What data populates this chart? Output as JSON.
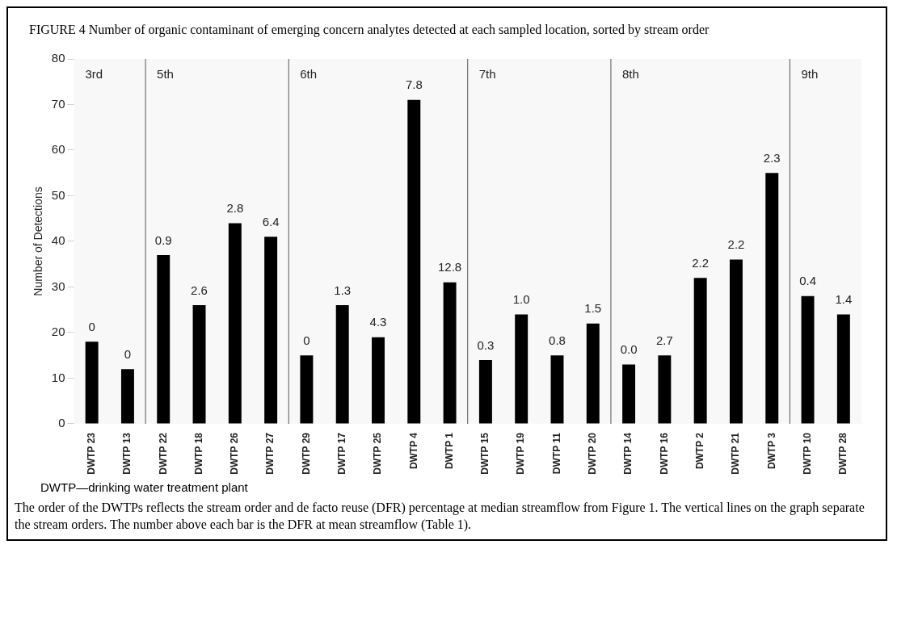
{
  "chart_data": {
    "type": "bar",
    "title": "FIGURE 4 Number of organic contaminant of emerging concern analytes detected at each sampled location, sorted by stream order",
    "ylabel": "Number of Detections",
    "categories": [
      "DWTP 23",
      "DWTP 13",
      "DWTP 22",
      "DWTP 18",
      "DWTP 26",
      "DWTP 27",
      "DWTP 29",
      "DWTP 17",
      "DWTP 25",
      "DWTP 4",
      "DWTP 1",
      "DWTP 15",
      "DWTP 19",
      "DWTP 11",
      "DWTP 20",
      "DWTP 14",
      "DWTP 16",
      "DWTP 2",
      "DWTP 21",
      "DWTP 3",
      "DWTP 10",
      "DWTP 28"
    ],
    "values": [
      18,
      12,
      37,
      26,
      44,
      41,
      15,
      26,
      19,
      71,
      31,
      14,
      24,
      15,
      22,
      13,
      15,
      32,
      36,
      55,
      28,
      24
    ],
    "color": "#000000",
    "ylim": [
      0,
      80
    ],
    "yticks": [
      0,
      10,
      20,
      30,
      40,
      50,
      60,
      70,
      80
    ],
    "grid": "y",
    "legend": false,
    "bands": [
      {
        "axis": "x",
        "from": "DWTP 23",
        "to": "DWTP 13",
        "label": "3rd",
        "color": "#f8f8f8"
      },
      {
        "axis": "x",
        "from": "DWTP 22",
        "to": "DWTP 27",
        "label": "5th",
        "color": "#f8f8f8"
      },
      {
        "axis": "x",
        "from": "DWTP 29",
        "to": "DWTP 1",
        "label": "6th",
        "color": "#f8f8f8"
      },
      {
        "axis": "x",
        "from": "DWTP 15",
        "to": "DWTP 20",
        "label": "7th",
        "color": "#f8f8f8"
      },
      {
        "axis": "x",
        "from": "DWTP 14",
        "to": "DWTP 3",
        "label": "8th",
        "color": "#f8f8f8"
      },
      {
        "axis": "x",
        "from": "DWTP 10",
        "to": "DWTP 28",
        "label": "9th",
        "color": "#f8f8f8"
      }
    ],
    "annotations": [
      {
        "text": "0",
        "x": "DWTP 23",
        "y": 18
      },
      {
        "text": "0",
        "x": "DWTP 13",
        "y": 12
      },
      {
        "text": "0.9",
        "x": "DWTP 22",
        "y": 37
      },
      {
        "text": "2.6",
        "x": "DWTP 18",
        "y": 26
      },
      {
        "text": "2.8",
        "x": "DWTP 26",
        "y": 44
      },
      {
        "text": "6.4",
        "x": "DWTP 27",
        "y": 41
      },
      {
        "text": "0",
        "x": "DWTP 29",
        "y": 15
      },
      {
        "text": "1.3",
        "x": "DWTP 17",
        "y": 26
      },
      {
        "text": "4.3",
        "x": "DWTP 25",
        "y": 19
      },
      {
        "text": "7.8",
        "x": "DWTP 4",
        "y": 71
      },
      {
        "text": "12.8",
        "x": "DWTP 1",
        "y": 31
      },
      {
        "text": "0.3",
        "x": "DWTP 15",
        "y": 14
      },
      {
        "text": "1.0",
        "x": "DWTP 19",
        "y": 24
      },
      {
        "text": "0.8",
        "x": "DWTP 11",
        "y": 15
      },
      {
        "text": "1.5",
        "x": "DWTP 20",
        "y": 22
      },
      {
        "text": "0.0",
        "x": "DWTP 14",
        "y": 13
      },
      {
        "text": "2.7",
        "x": "DWTP 16",
        "y": 15
      },
      {
        "text": "2.2",
        "x": "DWTP 2",
        "y": 32
      },
      {
        "text": "2.2",
        "x": "DWTP 21",
        "y": 36
      },
      {
        "text": "2.3",
        "x": "DWTP 3",
        "y": 55
      },
      {
        "text": "0.4",
        "x": "DWTP 10",
        "y": 28
      },
      {
        "text": "1.4",
        "x": "DWTP 28",
        "y": 24
      },
      "DWTP—drinking water treatment plant",
      "The order of the DWTPs reflects the stream order and de facto reuse (DFR) percentage at median streamflow from Figure 1. The vertical lines on the graph separate the stream orders. The number above each bar is the DFR at mean streamflow (Table 1)."
    ]
  }
}
